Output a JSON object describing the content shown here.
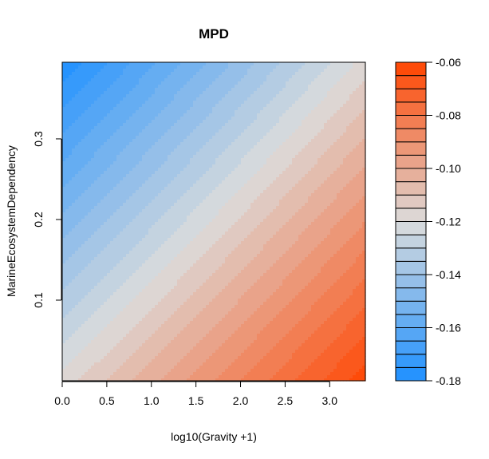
{
  "chart_data": {
    "type": "heatmap",
    "title": "MPD",
    "xlabel": "log10(Gravity +1)",
    "ylabel": "MarineEcosystemDependency",
    "xlim": [
      0.0,
      3.4
    ],
    "ylim": [
      0.0,
      0.395
    ],
    "x_ticks": [
      "0.0",
      "0.5",
      "1.0",
      "1.5",
      "2.0",
      "2.5",
      "3.0"
    ],
    "x_tick_values": [
      0.0,
      0.5,
      1.0,
      1.5,
      2.0,
      2.5,
      3.0
    ],
    "y_ticks": [
      "0.1",
      "0.2",
      "0.3"
    ],
    "y_tick_values": [
      0.1,
      0.2,
      0.3
    ],
    "z_range": [
      -0.18,
      -0.06
    ],
    "surface": {
      "description_of_values": "filled contour; z at corners",
      "z_at_x0_y0": -0.118,
      "z_at_xmax_y0": -0.062,
      "z_at_x0_ymax": -0.179,
      "z_at_xmax_ymax": -0.118
    },
    "levels": [
      -0.18,
      -0.175,
      -0.17,
      -0.165,
      -0.16,
      -0.155,
      -0.15,
      -0.145,
      -0.14,
      -0.135,
      -0.13,
      -0.125,
      -0.12,
      -0.115,
      -0.11,
      -0.105,
      -0.1,
      -0.095,
      -0.09,
      -0.085,
      -0.08,
      -0.075,
      -0.07,
      -0.065,
      -0.06
    ],
    "colorbar_ticks": [
      "-0.06",
      "-0.08",
      "-0.10",
      "-0.12",
      "-0.14",
      "-0.16",
      "-0.18"
    ],
    "colorbar_tick_values": [
      -0.06,
      -0.08,
      -0.1,
      -0.12,
      -0.14,
      -0.16,
      -0.18
    ],
    "colors": {
      "low": "#1E90FF",
      "mid": "#DCDCDC",
      "high": "#FF4500"
    },
    "grid": false,
    "legend": "right"
  }
}
